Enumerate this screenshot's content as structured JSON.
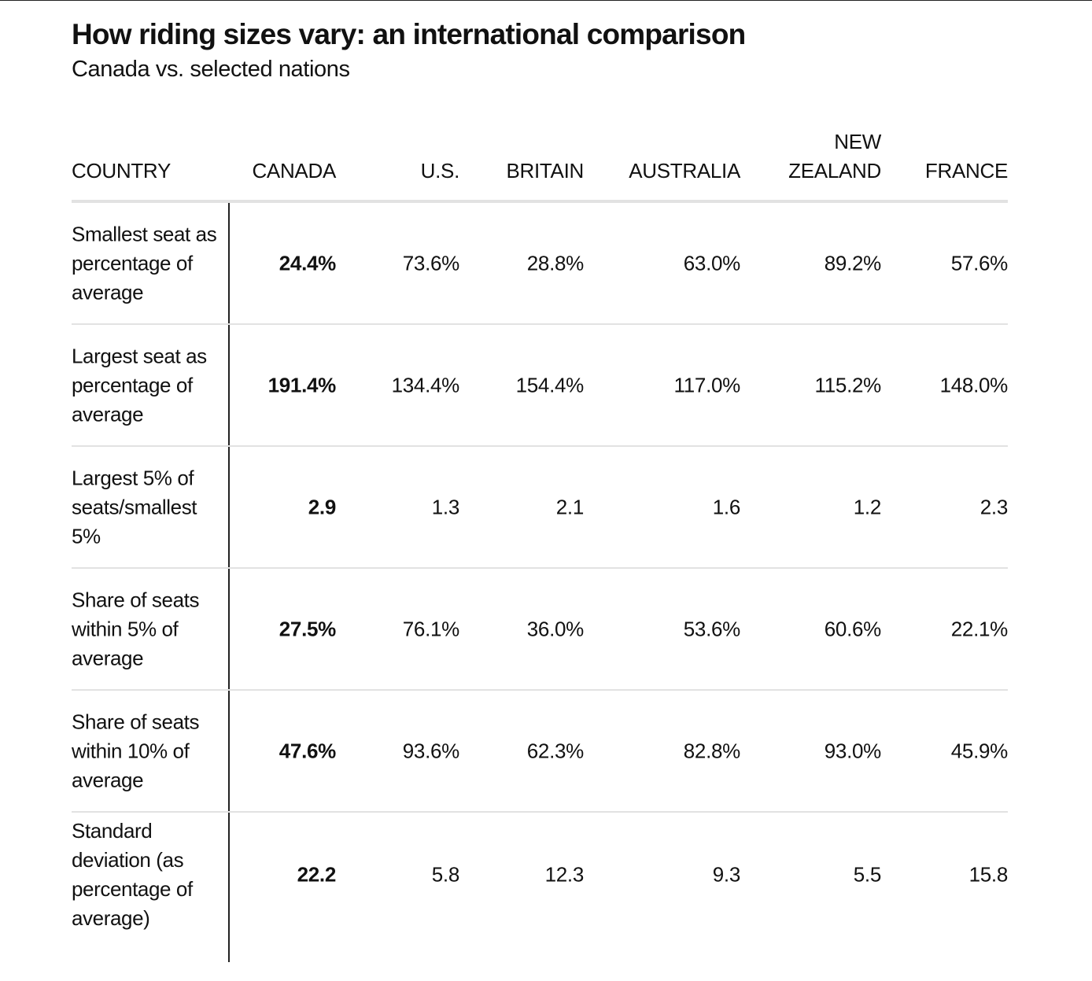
{
  "title": "How riding sizes vary: an international comparison",
  "subtitle": "Canada vs. selected nations",
  "chart_data": {
    "type": "table",
    "title": "How riding sizes vary: an international comparison",
    "subtitle": "Canada vs. selected nations",
    "columns": [
      "COUNTRY",
      "CANADA",
      "U.S.",
      "BRITAIN",
      "AUSTRALIA",
      "NEW\nZEALAND",
      "FRANCE"
    ],
    "rows": [
      {
        "label": "Smallest seat as percentage of average",
        "values": [
          "24.4%",
          "73.6%",
          "28.8%",
          "63.0%",
          "89.2%",
          "57.6%"
        ]
      },
      {
        "label": "Largest seat as percentage of average",
        "values": [
          "191.4%",
          "134.4%",
          "154.4%",
          "117.0%",
          "115.2%",
          "148.0%"
        ]
      },
      {
        "label": "Largest 5% of seats/smallest 5%",
        "values": [
          "2.9",
          "1.3",
          "2.1",
          "1.6",
          "1.2",
          "2.3"
        ]
      },
      {
        "label": "Share of seats within 5% of average",
        "values": [
          "27.5%",
          "76.1%",
          "36.0%",
          "53.6%",
          "60.6%",
          "22.1%"
        ]
      },
      {
        "label": "Share of seats within 10% of average",
        "values": [
          "47.6%",
          "93.6%",
          "62.3%",
          "82.8%",
          "93.0%",
          "45.9%"
        ]
      },
      {
        "label": "Standard deviation (as percentage of average)",
        "values": [
          "22.2",
          "5.8",
          "12.3",
          "9.3",
          "5.5",
          "15.8"
        ]
      }
    ],
    "highlight_column": "CANADA"
  }
}
